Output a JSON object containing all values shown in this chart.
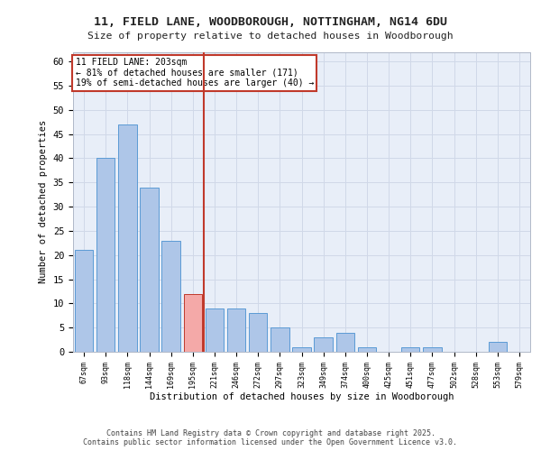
{
  "title1": "11, FIELD LANE, WOODBOROUGH, NOTTINGHAM, NG14 6DU",
  "title2": "Size of property relative to detached houses in Woodborough",
  "xlabel": "Distribution of detached houses by size in Woodborough",
  "ylabel": "Number of detached properties",
  "categories": [
    "67sqm",
    "93sqm",
    "118sqm",
    "144sqm",
    "169sqm",
    "195sqm",
    "221sqm",
    "246sqm",
    "272sqm",
    "297sqm",
    "323sqm",
    "349sqm",
    "374sqm",
    "400sqm",
    "425sqm",
    "451sqm",
    "477sqm",
    "502sqm",
    "528sqm",
    "553sqm",
    "579sqm"
  ],
  "values": [
    21,
    40,
    47,
    34,
    23,
    12,
    9,
    9,
    8,
    5,
    1,
    3,
    4,
    1,
    0,
    1,
    1,
    0,
    0,
    2,
    0
  ],
  "bar_color": "#aec6e8",
  "bar_edge_color": "#5b9bd5",
  "highlight_bar_color": "#f4a9a8",
  "highlight_bar_edge_color": "#c0392b",
  "vline_color": "#c0392b",
  "vline_x": 5.5,
  "annotation_title": "11 FIELD LANE: 203sqm",
  "annotation_line1": "← 81% of detached houses are smaller (171)",
  "annotation_line2": "19% of semi-detached houses are larger (40) →",
  "annotation_box_color": "#ffffff",
  "annotation_box_edge_color": "#c0392b",
  "grid_color": "#d0d8e8",
  "background_color": "#e8eef8",
  "fig_background": "#ffffff",
  "ylim": [
    0,
    62
  ],
  "yticks": [
    0,
    5,
    10,
    15,
    20,
    25,
    30,
    35,
    40,
    45,
    50,
    55,
    60
  ],
  "footer1": "Contains HM Land Registry data © Crown copyright and database right 2025.",
  "footer2": "Contains public sector information licensed under the Open Government Licence v3.0.",
  "highlight_indices": [
    5
  ]
}
